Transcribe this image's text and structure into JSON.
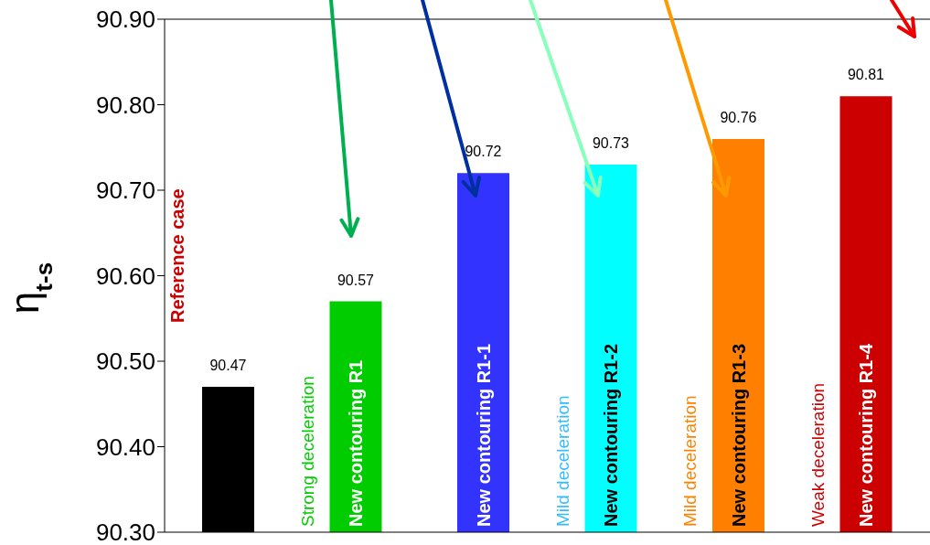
{
  "chart_data": {
    "type": "bar",
    "ylabel": "η$_{t-s}$",
    "categories": [
      "Reference case",
      "New contouring R1",
      "New contouring R1-1",
      "New contouring R1-2",
      "New contouring R1-3",
      "New contouring R1-4"
    ],
    "values": [
      90.47,
      90.57,
      90.72,
      90.73,
      90.76,
      90.81
    ],
    "colors": [
      "#000000",
      "#00cc00",
      "#3333ff",
      "#00ffff",
      "#ff8000",
      "#cc0000"
    ],
    "ylim": [
      90.3,
      90.9
    ],
    "yticks": [
      {
        "value": 90.3,
        "label": "90.30"
      },
      {
        "value": 90.4,
        "label": "90.40"
      },
      {
        "value": 90.5,
        "label": "90.50"
      },
      {
        "value": 90.6,
        "label": "90.60"
      },
      {
        "value": 90.7,
        "label": "90.70"
      },
      {
        "value": 90.8,
        "label": "90.80"
      },
      {
        "value": 90.9,
        "label": "90.90"
      }
    ],
    "data_labels": true,
    "grid": false,
    "legend": false,
    "annotations": [
      "Strong deceleration",
      "Mild deceleration",
      "Mild deceleration",
      "Weak deceleration"
    ]
  }
}
